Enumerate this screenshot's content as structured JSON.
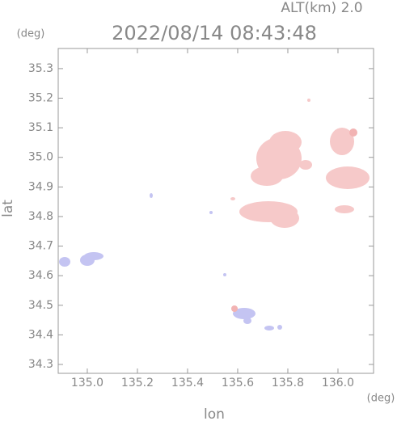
{
  "chart_data": {
    "type": "map",
    "title": "2022/08/14 08:43:48",
    "subtitle": "ALT(km) 2.0",
    "y_unit": "(deg)",
    "x_unit": "(deg)",
    "xlabel": "lon",
    "ylabel": "lat",
    "xlim": [
      134.884,
      136.142
    ],
    "ylim": [
      34.27,
      35.368
    ],
    "xticks": [
      {
        "value": 135.0,
        "label": "135.0"
      },
      135.2,
      135.4,
      135.6,
      135.8,
      {
        "value": 136.0,
        "label": "136.0"
      }
    ],
    "yticks": [
      34.3,
      34.4,
      34.5,
      34.6,
      34.7,
      34.8,
      34.9,
      {
        "value": 35.0,
        "label": "35.0"
      },
      35.1,
      35.2,
      35.3
    ]
  }
}
